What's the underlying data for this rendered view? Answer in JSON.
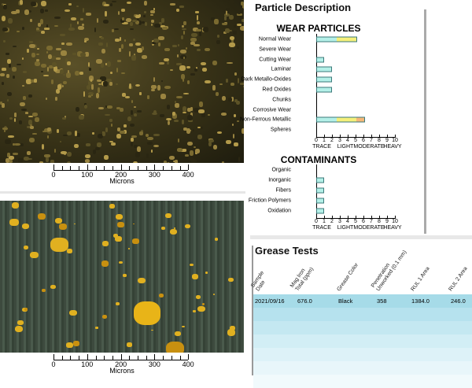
{
  "images": [
    {
      "scale": {
        "ticks": [
          "0",
          "100",
          "200",
          "300",
          "400"
        ],
        "unit": "Microns"
      }
    },
    {
      "scale": {
        "ticks": [
          "0",
          "100",
          "200",
          "300",
          "400"
        ],
        "unit": "Microns"
      }
    }
  ],
  "particle_description": {
    "title": "Particle Description"
  },
  "wear_particles": {
    "title": "WEAR PARTICLES",
    "rows": [
      {
        "label": "Normal Wear",
        "value": 5.2
      },
      {
        "label": "Severe Wear",
        "value": 0
      },
      {
        "label": "Cutting Wear",
        "value": 1
      },
      {
        "label": "Laminar",
        "value": 2
      },
      {
        "label": "Dark Metallo-Oxides",
        "value": 2
      },
      {
        "label": "Red Oxides",
        "value": 2
      },
      {
        "label": "Chunks",
        "value": 0
      },
      {
        "label": "Corrosive Wear",
        "value": 0
      },
      {
        "label": "Non-Ferrous Metallic",
        "value": 6.2
      },
      {
        "label": "Spheres",
        "value": 0
      }
    ]
  },
  "contaminants": {
    "title": "CONTAMINANTS",
    "rows": [
      {
        "label": "Organic",
        "value": 0
      },
      {
        "label": "Inorganic",
        "value": 1
      },
      {
        "label": "Fibers",
        "value": 1
      },
      {
        "label": "Friction Polymers",
        "value": 1
      },
      {
        "label": "Oxidation",
        "value": 1
      }
    ]
  },
  "axis": {
    "ticks": [
      "0",
      "1",
      "2",
      "3",
      "4",
      "5",
      "6",
      "7",
      "8",
      "9",
      "10"
    ],
    "levels": [
      "TRACE",
      "LIGHT",
      "MODERATE",
      "HEAVY"
    ],
    "range": [
      0,
      10
    ]
  },
  "colors": {
    "trace": "#b4f0e8",
    "light": "#f5f07a",
    "moderate": "#f5b878",
    "row": "#a6dbe8"
  },
  "grease_tests": {
    "title": "Grease Tests",
    "headers": [
      "Sample\nDate",
      "Mag Iron\nTotal (ppm)",
      "Grease Color",
      "Penetration\nUnworked (0.1 mm)",
      "RUL 1 Area",
      "RUL 2 Area"
    ],
    "rows": [
      [
        "2021/09/16",
        "676.0",
        "Black",
        "358",
        "1384.0",
        "246.0"
      ]
    ]
  }
}
